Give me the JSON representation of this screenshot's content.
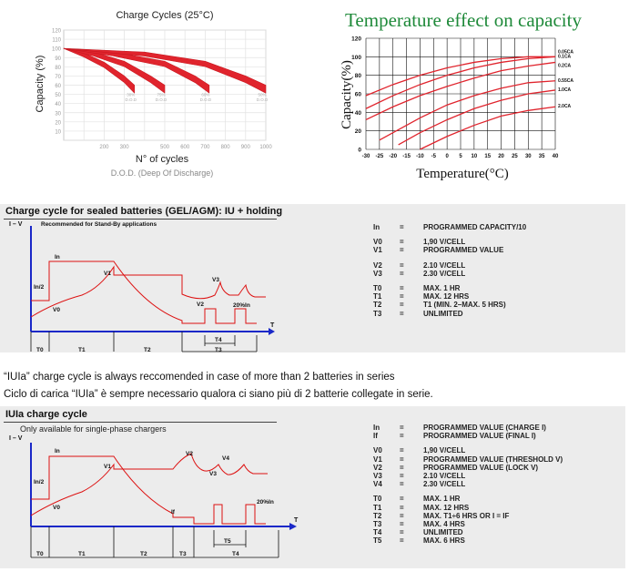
{
  "charge_cycles_chart": {
    "title": "Charge Cycles (25°C)",
    "ylabel": "Capacity (%)",
    "xlabel": "N° of cycles",
    "x_note": "D.O.D. (Deep Of Discharge)",
    "y_ticks": [
      "120",
      "110",
      "100",
      "90",
      "80",
      "70",
      "60",
      "50",
      "40",
      "30",
      "20",
      "10"
    ],
    "x_ticks": [
      "200",
      "300",
      "500",
      "600",
      "700",
      "800",
      "900",
      "1000"
    ],
    "curve_labels": [
      {
        "pct": "30%",
        "dod": "D.O.D"
      },
      {
        "pct": "75%",
        "dod": "D.O.D"
      },
      {
        "pct": "60%",
        "dod": "D.O.D"
      },
      {
        "pct": "50%",
        "dod": "D.O.D"
      }
    ]
  },
  "temperature_chart": {
    "title": "Temperature effect on capacity",
    "ylabel": "Capacity(%)",
    "xlabel": "Temperature(°C)",
    "y_ticks": [
      "120",
      "100",
      "80",
      "60",
      "40",
      "20",
      "0"
    ],
    "x_ticks": [
      "-30",
      "-25",
      "-20",
      "-15",
      "-10",
      "-5",
      "0",
      "5",
      "10",
      "15",
      "20",
      "25",
      "30",
      "35",
      "40"
    ],
    "series_labels": [
      "0.05CA",
      "0.1CA",
      "0.2CA",
      "0.55CA",
      "1.0CA",
      "2.0CA"
    ]
  },
  "chart_data": [
    {
      "type": "line",
      "title": "Charge Cycles (25°C)",
      "xlabel": "N° of cycles",
      "ylabel": "Capacity (%)",
      "xlim": [
        0,
        1000
      ],
      "ylim": [
        0,
        120
      ],
      "series": [
        {
          "name": "30% D.O.D",
          "x": [
            0,
            100,
            200,
            300,
            350
          ],
          "y": [
            100,
            95,
            85,
            70,
            60
          ]
        },
        {
          "name": "75% D.O.D",
          "x": [
            0,
            150,
            300,
            430,
            500
          ],
          "y": [
            100,
            96,
            86,
            70,
            60
          ]
        },
        {
          "name": "60% D.O.D",
          "x": [
            0,
            250,
            500,
            650,
            720
          ],
          "y": [
            100,
            96,
            86,
            70,
            60
          ]
        },
        {
          "name": "50% D.O.D",
          "x": [
            0,
            400,
            700,
            900,
            1000
          ],
          "y": [
            100,
            96,
            86,
            70,
            60
          ]
        }
      ]
    },
    {
      "type": "line",
      "title": "Temperature effect on capacity",
      "xlabel": "Temperature(°C)",
      "ylabel": "Capacity(%)",
      "xlim": [
        -30,
        40
      ],
      "ylim": [
        0,
        120
      ],
      "series": [
        {
          "name": "0.05CA",
          "x": [
            -30,
            -20,
            -10,
            0,
            10,
            20,
            30,
            40
          ],
          "y": [
            58,
            70,
            80,
            88,
            94,
            98,
            100,
            100
          ]
        },
        {
          "name": "0.1CA",
          "x": [
            -30,
            -20,
            -10,
            0,
            10,
            20,
            30,
            40
          ],
          "y": [
            44,
            58,
            70,
            80,
            88,
            94,
            98,
            100
          ]
        },
        {
          "name": "0.2CA",
          "x": [
            -30,
            -20,
            -10,
            0,
            10,
            20,
            30,
            40
          ],
          "y": [
            32,
            46,
            58,
            68,
            77,
            85,
            90,
            94
          ]
        },
        {
          "name": "0.55CA",
          "x": [
            -25,
            -20,
            -10,
            0,
            10,
            20,
            30,
            40
          ],
          "y": [
            10,
            18,
            34,
            48,
            58,
            66,
            72,
            74
          ]
        },
        {
          "name": "1.0CA",
          "x": [
            -18,
            -10,
            0,
            10,
            20,
            30,
            40
          ],
          "y": [
            5,
            18,
            32,
            44,
            53,
            60,
            64
          ]
        },
        {
          "name": "2.0CA",
          "x": [
            -10,
            0,
            10,
            20,
            30,
            40
          ],
          "y": [
            0,
            14,
            26,
            36,
            42,
            46
          ]
        }
      ]
    }
  ],
  "panel_iu": {
    "title": "Charge cycle for sealed batteries (GEL/AGM): IU + holding",
    "axis_label": "I – V",
    "subtitle": "Recommended for Stand-By applications",
    "labels": {
      "In": "In",
      "In2": "In/2",
      "V0": "V0",
      "V1": "V1",
      "V2": "V2",
      "V3": "V3",
      "pulse": "20%In",
      "T": "T"
    },
    "periods": [
      "T0",
      "T1",
      "T2",
      "T3",
      "T4"
    ],
    "defs": [
      [
        {
          "s": "In",
          "v": "PROGRAMMED CAPACITY/10"
        }
      ],
      [
        {
          "s": "V0",
          "v": "1,90 V/CELL"
        },
        {
          "s": "V1",
          "v": "PROGRAMMED VALUE"
        }
      ],
      [
        {
          "s": "V2",
          "v": "2.10 V/CELL"
        },
        {
          "s": "V3",
          "v": "2.30 V/CELL"
        }
      ],
      [
        {
          "s": "T0",
          "v": "MAX. 1 HR"
        },
        {
          "s": "T1",
          "v": "MAX. 12 HRS"
        },
        {
          "s": "T2",
          "v": "T1 (MIN. 2–MAX. 5 HRS)"
        },
        {
          "s": "T3",
          "v": "UNLIMITED"
        }
      ]
    ]
  },
  "notes": {
    "en": "“IUIa” charge cycle is always reccomended in case of more than 2 batteries in series",
    "it": "Ciclo di carica “IUIa” è sempre necessario qualora ci siano più di 2 batterie collegate in serie."
  },
  "panel_iuia": {
    "title": "IUIa charge cycle",
    "subtitle": "Only available for single-phase chargers",
    "axis_label": "I – V",
    "labels": {
      "In": "In",
      "In2": "In/2",
      "V0": "V0",
      "V1": "V1",
      "V2": "V2",
      "V3": "V3",
      "V4": "V4",
      "If": "If",
      "pulse": "20%In",
      "T": "T"
    },
    "periods": [
      "T0",
      "T1",
      "T2",
      "T3",
      "T4",
      "T5"
    ],
    "defs": [
      [
        {
          "s": "In",
          "v": "PROGRAMMED VALUE (CHARGE I)"
        },
        {
          "s": "If",
          "v": "PROGRAMMED VALUE (FINAL I)"
        }
      ],
      [
        {
          "s": "V0",
          "v": "1,90 V/CELL"
        },
        {
          "s": "V1",
          "v": "PROGRAMMED VALUE (THRESHOLD V)"
        },
        {
          "s": "V2",
          "v": "PROGRAMMED VALUE (LOCK V)"
        },
        {
          "s": "V3",
          "v": "2.10 V/CELL"
        },
        {
          "s": "V4",
          "v": "2.30 V/CELL"
        }
      ],
      [
        {
          "s": "T0",
          "v": "MAX. 1 HR"
        },
        {
          "s": "T1",
          "v": "MAX. 12 HRS"
        },
        {
          "s": "T2",
          "v": "MAX. T1÷6 HRS OR I = IF"
        },
        {
          "s": "T3",
          "v": "MAX. 4 HRS"
        },
        {
          "s": "T4",
          "v": "UNLIMITED"
        },
        {
          "s": "T5",
          "v": "MAX. 6 HRS"
        }
      ]
    ]
  }
}
